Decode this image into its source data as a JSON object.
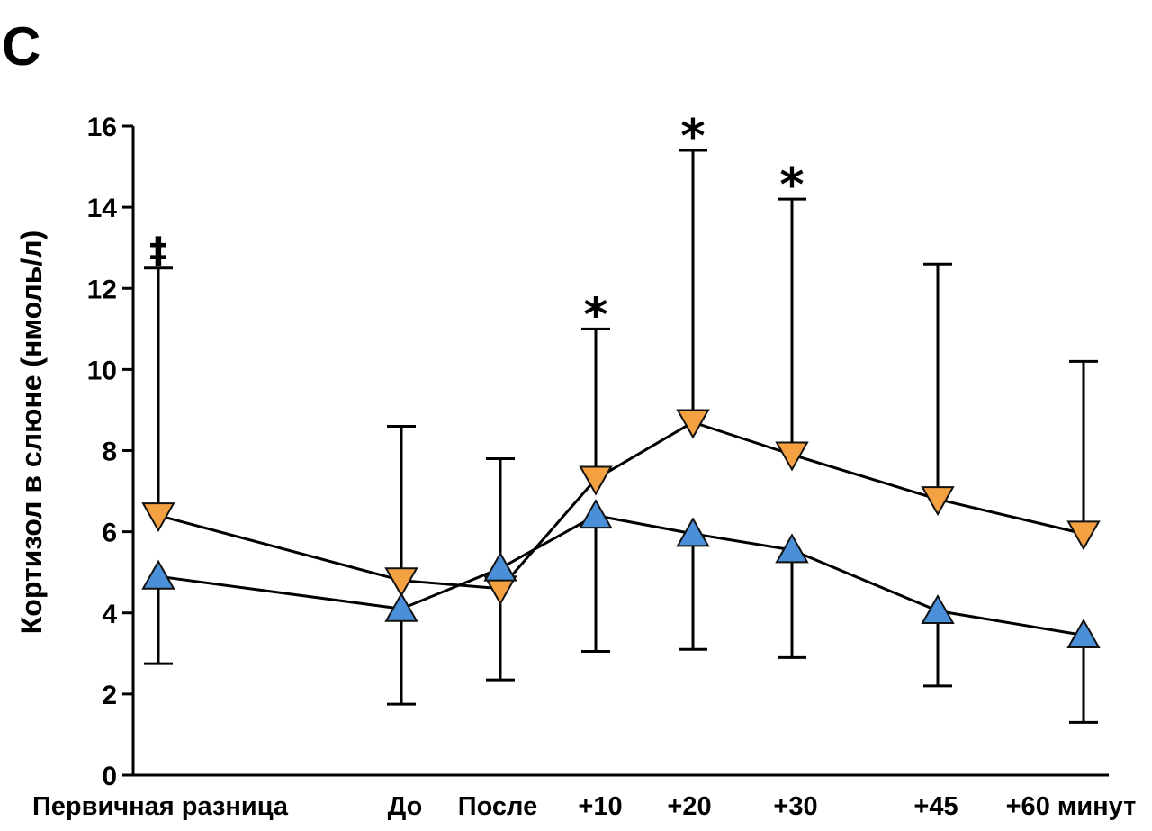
{
  "panel_label": "C",
  "chart_data": {
    "type": "line",
    "title": "",
    "xlabel": "",
    "ylabel": "Кортизол в слюне (нмоль/л)",
    "ylim": [
      0,
      16
    ],
    "yticks": [
      0,
      2,
      4,
      6,
      8,
      10,
      12,
      14,
      16
    ],
    "categories": [
      "Первичная разница",
      "До",
      "После",
      "+10",
      "+20",
      "+30",
      "+45",
      "+60 минут"
    ],
    "grid": false,
    "series": [
      {
        "marker": "triangle-down",
        "color": "#F4A142",
        "values": [
          6.4,
          4.8,
          4.6,
          7.3,
          8.7,
          7.9,
          6.8,
          5.95
        ],
        "error_upper": [
          12.5,
          8.6,
          null,
          11.0,
          15.4,
          14.2,
          12.6,
          10.2
        ]
      },
      {
        "marker": "triangle-up",
        "color": "#4A90D9",
        "values": [
          4.9,
          4.1,
          5.1,
          6.4,
          5.95,
          5.55,
          4.05,
          3.45
        ],
        "error_lower": [
          2.75,
          1.75,
          2.35,
          3.05,
          3.1,
          2.9,
          2.2,
          1.3
        ],
        "error_upper": [
          null,
          null,
          7.8,
          null,
          null,
          null,
          null,
          null
        ]
      }
    ],
    "annotations": [
      {
        "category": "Первичная разница",
        "text": "‡",
        "y": 12.5
      },
      {
        "category": "+10",
        "text": "*",
        "y": 11.0
      },
      {
        "category": "+20",
        "text": "*",
        "y": 15.4
      },
      {
        "category": "+30",
        "text": "*",
        "y": 14.2
      }
    ]
  }
}
